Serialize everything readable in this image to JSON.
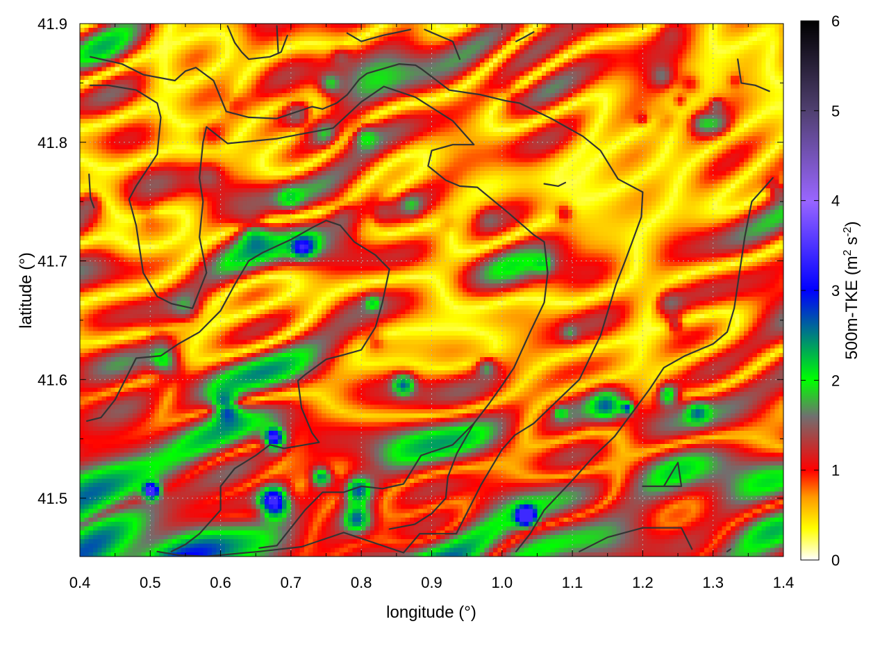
{
  "chart_data": {
    "type": "heatmap",
    "title": "",
    "xlabel": "longitude (°)",
    "ylabel": "latitude (°)",
    "colorbar_label": "500m-TKE (m² s⁻²)",
    "colorbar_label_parts": {
      "main": "500m-TKE (m",
      "sup1": "2",
      "mid": " s",
      "sup2": "-2",
      "end": ")"
    },
    "xlim": [
      0.4,
      1.4
    ],
    "ylim": [
      41.45,
      41.9
    ],
    "zlim": [
      0,
      6
    ],
    "x_ticks": [
      "0.4",
      "0.5",
      "0.6",
      "0.7",
      "0.8",
      "0.9",
      "1.0",
      "1.1",
      "1.2",
      "1.3",
      "1.4"
    ],
    "y_ticks": [
      "41.5",
      "41.6",
      "41.7",
      "41.8",
      "41.9"
    ],
    "colorbar_ticks": [
      "0",
      "1",
      "2",
      "3",
      "4",
      "5",
      "6"
    ],
    "colormap_stops": [
      {
        "value": 0.0,
        "color": "#ffffff"
      },
      {
        "value": 0.35,
        "color": "#ffff00"
      },
      {
        "value": 0.7,
        "color": "#ff9900"
      },
      {
        "value": 1.0,
        "color": "#ff0000"
      },
      {
        "value": 1.6,
        "color": "#707070"
      },
      {
        "value": 2.0,
        "color": "#00ff00"
      },
      {
        "value": 3.0,
        "color": "#0000ff"
      },
      {
        "value": 4.0,
        "color": "#9966ff"
      },
      {
        "value": 5.0,
        "color": "#504070"
      },
      {
        "value": 6.0,
        "color": "#000000"
      }
    ],
    "grid": true,
    "contour_color": "#333333",
    "contours": [
      [
        [
          0.415,
          41.872
        ],
        [
          0.46,
          41.866
        ],
        [
          0.49,
          41.857
        ],
        [
          0.535,
          41.852
        ],
        [
          0.55,
          41.86
        ],
        [
          0.565,
          41.863
        ],
        [
          0.59,
          41.852
        ],
        [
          0.608,
          41.826
        ],
        [
          0.64,
          41.821
        ],
        [
          0.68,
          41.82
        ],
        [
          0.73,
          41.83
        ],
        [
          0.745,
          41.828
        ],
        [
          0.765,
          41.833
        ],
        [
          0.78,
          41.84
        ],
        [
          0.797,
          41.853
        ],
        [
          0.808,
          41.858
        ],
        [
          0.854,
          41.866
        ],
        [
          0.877,
          41.865
        ],
        [
          0.885,
          41.862
        ],
        [
          0.925,
          41.844
        ],
        [
          0.97,
          41.84
        ],
        [
          1.005,
          41.835
        ],
        [
          1.025,
          41.833
        ],
        [
          1.07,
          41.82
        ],
        [
          1.1,
          41.81
        ],
        [
          1.115,
          41.805
        ],
        [
          1.14,
          41.793
        ],
        [
          1.165,
          41.769
        ],
        [
          1.2,
          41.758
        ],
        [
          1.198,
          41.737
        ],
        [
          1.185,
          41.716
        ],
        [
          1.175,
          41.7
        ],
        [
          1.162,
          41.68
        ],
        [
          1.14,
          41.637
        ],
        [
          1.11,
          41.6
        ],
        [
          1.045,
          41.563
        ],
        [
          1.018,
          41.553
        ],
        [
          1.0,
          41.541
        ],
        [
          0.97,
          41.511
        ],
        [
          0.935,
          41.47
        ],
        [
          0.883,
          41.47
        ],
        [
          0.86,
          41.454
        ],
        [
          0.775,
          41.471
        ],
        [
          0.715,
          41.459
        ],
        [
          0.655,
          41.455
        ],
        [
          0.58,
          41.451
        ],
        [
          0.54,
          41.452
        ],
        [
          0.51,
          41.455
        ]
      ],
      [
        [
          0.415,
          41.848
        ],
        [
          0.44,
          41.848
        ],
        [
          0.48,
          41.844
        ],
        [
          0.51,
          41.833
        ],
        [
          0.515,
          41.821
        ],
        [
          0.51,
          41.79
        ],
        [
          0.48,
          41.763
        ],
        [
          0.47,
          41.752
        ],
        [
          0.48,
          41.73
        ],
        [
          0.49,
          41.69
        ],
        [
          0.51,
          41.67
        ],
        [
          0.53,
          41.664
        ],
        [
          0.56,
          41.66
        ],
        [
          0.58,
          41.69
        ],
        [
          0.57,
          41.72
        ],
        [
          0.575,
          41.75
        ],
        [
          0.57,
          41.77
        ],
        [
          0.575,
          41.8
        ],
        [
          0.58,
          41.813
        ],
        [
          0.61,
          41.799
        ],
        [
          0.68,
          41.803
        ],
        [
          0.76,
          41.812
        ],
        [
          0.8,
          41.834
        ],
        [
          0.832,
          41.847
        ],
        [
          0.877,
          41.838
        ],
        [
          0.93,
          41.818
        ],
        [
          0.96,
          41.798
        ],
        [
          0.93,
          41.798
        ],
        [
          0.9,
          41.793
        ],
        [
          0.895,
          41.78
        ],
        [
          0.92,
          41.768
        ],
        [
          0.94,
          41.763
        ],
        [
          0.965,
          41.762
        ],
        [
          1.01,
          41.74
        ],
        [
          1.045,
          41.722
        ],
        [
          1.06,
          41.716
        ],
        [
          1.065,
          41.69
        ],
        [
          1.06,
          41.665
        ],
        [
          1.04,
          41.64
        ],
        [
          1.017,
          41.61
        ],
        [
          1.0,
          41.595
        ],
        [
          0.982,
          41.58
        ],
        [
          0.96,
          41.563
        ],
        [
          0.936,
          41.538
        ],
        [
          0.923,
          41.518
        ],
        [
          0.92,
          41.5
        ],
        [
          0.9,
          41.487
        ],
        [
          0.876,
          41.478
        ],
        [
          0.84,
          41.474
        ]
      ],
      [
        [
          0.41,
          41.565
        ],
        [
          0.43,
          41.568
        ],
        [
          0.45,
          41.583
        ],
        [
          0.48,
          41.618
        ],
        [
          0.515,
          41.62
        ],
        [
          0.54,
          41.63
        ],
        [
          0.57,
          41.64
        ],
        [
          0.6,
          41.658
        ],
        [
          0.62,
          41.68
        ],
        [
          0.64,
          41.7
        ],
        [
          0.66,
          41.707
        ],
        [
          0.7,
          41.718
        ],
        [
          0.73,
          41.728
        ],
        [
          0.75,
          41.734
        ],
        [
          0.77,
          41.73
        ],
        [
          0.79,
          41.716
        ],
        [
          0.82,
          41.705
        ],
        [
          0.84,
          41.693
        ],
        [
          0.83,
          41.665
        ],
        [
          0.82,
          41.644
        ],
        [
          0.8,
          41.625
        ],
        [
          0.77,
          41.62
        ],
        [
          0.75,
          41.617
        ],
        [
          0.72,
          41.604
        ],
        [
          0.71,
          41.599
        ],
        [
          0.715,
          41.576
        ],
        [
          0.73,
          41.555
        ],
        [
          0.74,
          41.547
        ],
        [
          0.72,
          41.545
        ],
        [
          0.69,
          41.542
        ],
        [
          0.67,
          41.545
        ],
        [
          0.65,
          41.536
        ],
        [
          0.62,
          41.525
        ],
        [
          0.6,
          41.51
        ],
        [
          0.6,
          41.49
        ],
        [
          0.57,
          41.47
        ],
        [
          0.55,
          41.461
        ],
        [
          0.53,
          41.455
        ]
      ],
      [
        [
          0.655,
          41.458
        ],
        [
          0.68,
          41.46
        ],
        [
          0.72,
          41.49
        ],
        [
          0.745,
          41.505
        ],
        [
          0.775,
          41.505
        ],
        [
          0.8,
          41.51
        ],
        [
          0.83,
          41.508
        ],
        [
          0.86,
          41.512
        ],
        [
          0.885,
          41.536
        ],
        [
          0.93,
          41.545
        ],
        [
          0.96,
          41.563
        ]
      ],
      [
        [
          1.02,
          41.455
        ],
        [
          1.04,
          41.47
        ],
        [
          1.06,
          41.49
        ],
        [
          1.1,
          41.515
        ],
        [
          1.13,
          41.535
        ],
        [
          1.16,
          41.552
        ],
        [
          1.185,
          41.572
        ],
        [
          1.21,
          41.592
        ],
        [
          1.23,
          41.61
        ],
        [
          1.26,
          41.62
        ],
        [
          1.3,
          41.63
        ],
        [
          1.32,
          41.64
        ],
        [
          1.33,
          41.66
        ],
        [
          1.335,
          41.68
        ],
        [
          1.345,
          41.72
        ],
        [
          1.355,
          41.75
        ],
        [
          1.37,
          41.76
        ],
        [
          1.385,
          41.77
        ]
      ],
      [
        [
          1.11,
          41.455
        ],
        [
          1.15,
          41.467
        ],
        [
          1.2,
          41.475
        ],
        [
          1.255,
          41.475
        ],
        [
          1.27,
          41.457
        ]
      ],
      [
        [
          1.23,
          41.51
        ],
        [
          1.24,
          41.52
        ],
        [
          1.25,
          41.53
        ],
        [
          1.255,
          41.51
        ],
        [
          1.2,
          41.51
        ]
      ],
      [
        [
          1.06,
          41.765
        ],
        [
          1.08,
          41.763
        ],
        [
          1.09,
          41.766
        ]
      ],
      [
        [
          1.335,
          41.87
        ],
        [
          1.34,
          41.85
        ],
        [
          1.36,
          41.848
        ],
        [
          1.38,
          41.843
        ]
      ],
      [
        [
          0.413,
          41.773
        ],
        [
          0.415,
          41.753
        ],
        [
          0.42,
          41.745
        ]
      ],
      [
        [
          0.61,
          41.898
        ],
        [
          0.62,
          41.884
        ],
        [
          0.63,
          41.876
        ],
        [
          0.64,
          41.87
        ],
        [
          0.67,
          41.872
        ],
        [
          0.686,
          41.876
        ],
        [
          0.695,
          41.89
        ]
      ],
      [
        [
          0.68,
          41.898
        ],
        [
          0.682,
          41.875
        ]
      ],
      [
        [
          0.78,
          41.892
        ],
        [
          0.8,
          41.885
        ],
        [
          0.83,
          41.89
        ],
        [
          0.87,
          41.895
        ]
      ],
      [
        [
          0.89,
          41.895
        ],
        [
          0.91,
          41.89
        ],
        [
          0.93,
          41.885
        ],
        [
          0.94,
          41.87
        ]
      ],
      [
        [
          1.02,
          41.885
        ],
        [
          1.03,
          41.888
        ],
        [
          1.045,
          41.893
        ]
      ],
      [
        [
          1.32,
          41.455
        ],
        [
          1.325,
          41.457
        ]
      ]
    ]
  }
}
